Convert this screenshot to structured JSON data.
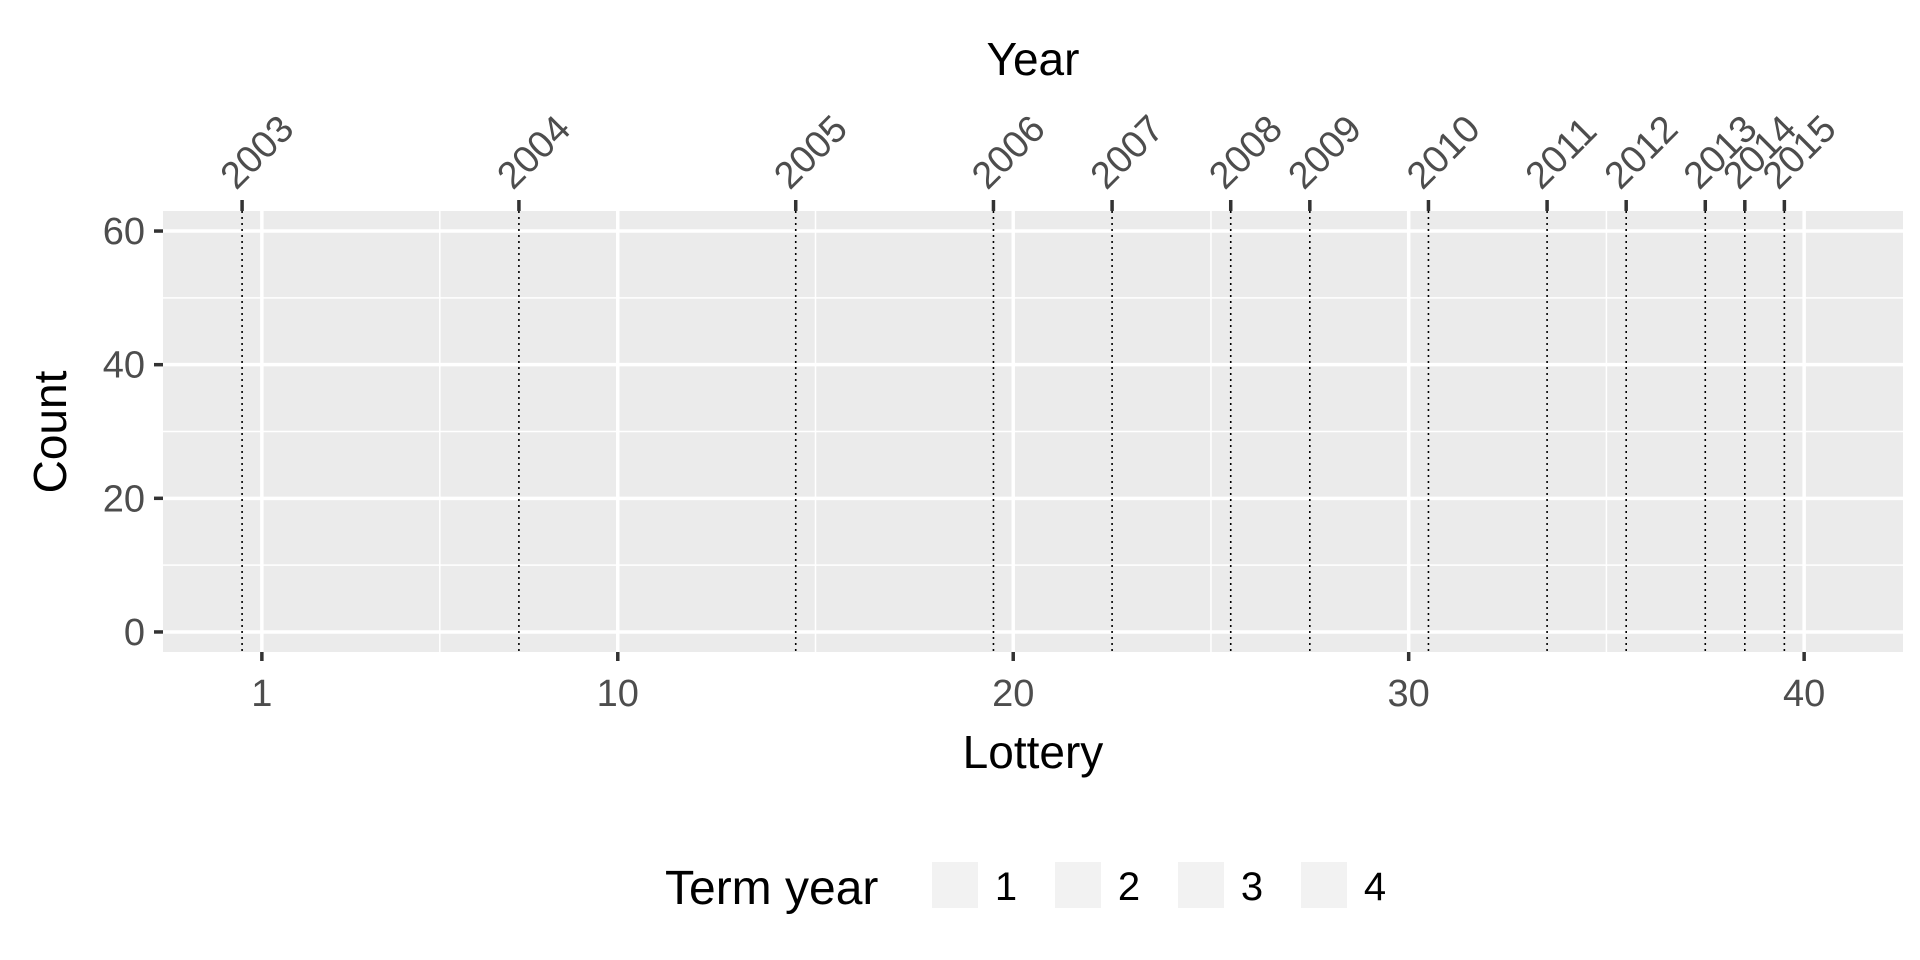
{
  "chart_data": {
    "type": "bar",
    "title": "",
    "xlabel": "Lottery",
    "ylabel": "Count",
    "x2label": "Year",
    "xlim": [
      -1.5,
      42.5
    ],
    "ylim": [
      -3,
      63
    ],
    "x_ticks": [
      1,
      10,
      20,
      30,
      40
    ],
    "y_ticks": [
      0,
      20,
      40,
      60
    ],
    "x_minor_ticks": [
      5.5,
      15,
      25,
      35
    ],
    "y_minor_ticks": [
      10,
      30,
      50
    ],
    "grid": true,
    "panel_background": "#ebebeb",
    "grid_color": "#ffffff",
    "year_lines": [
      {
        "label": "2003",
        "x": 0.5
      },
      {
        "label": "2004",
        "x": 7.5
      },
      {
        "label": "2005",
        "x": 14.5
      },
      {
        "label": "2006",
        "x": 19.5
      },
      {
        "label": "2007",
        "x": 22.5
      },
      {
        "label": "2008",
        "x": 25.5
      },
      {
        "label": "2009",
        "x": 27.5
      },
      {
        "label": "2010",
        "x": 30.5
      },
      {
        "label": "2011",
        "x": 33.5
      },
      {
        "label": "2012",
        "x": 35.5
      },
      {
        "label": "2013",
        "x": 37.5
      },
      {
        "label": "2014",
        "x": 38.5
      },
      {
        "label": "2015",
        "x": 39.5
      }
    ],
    "series": [],
    "legend": {
      "title": "Term year",
      "position": "bottom",
      "items": [
        "1",
        "2",
        "3",
        "4"
      ],
      "key_fill": "#f2f2f2"
    }
  }
}
